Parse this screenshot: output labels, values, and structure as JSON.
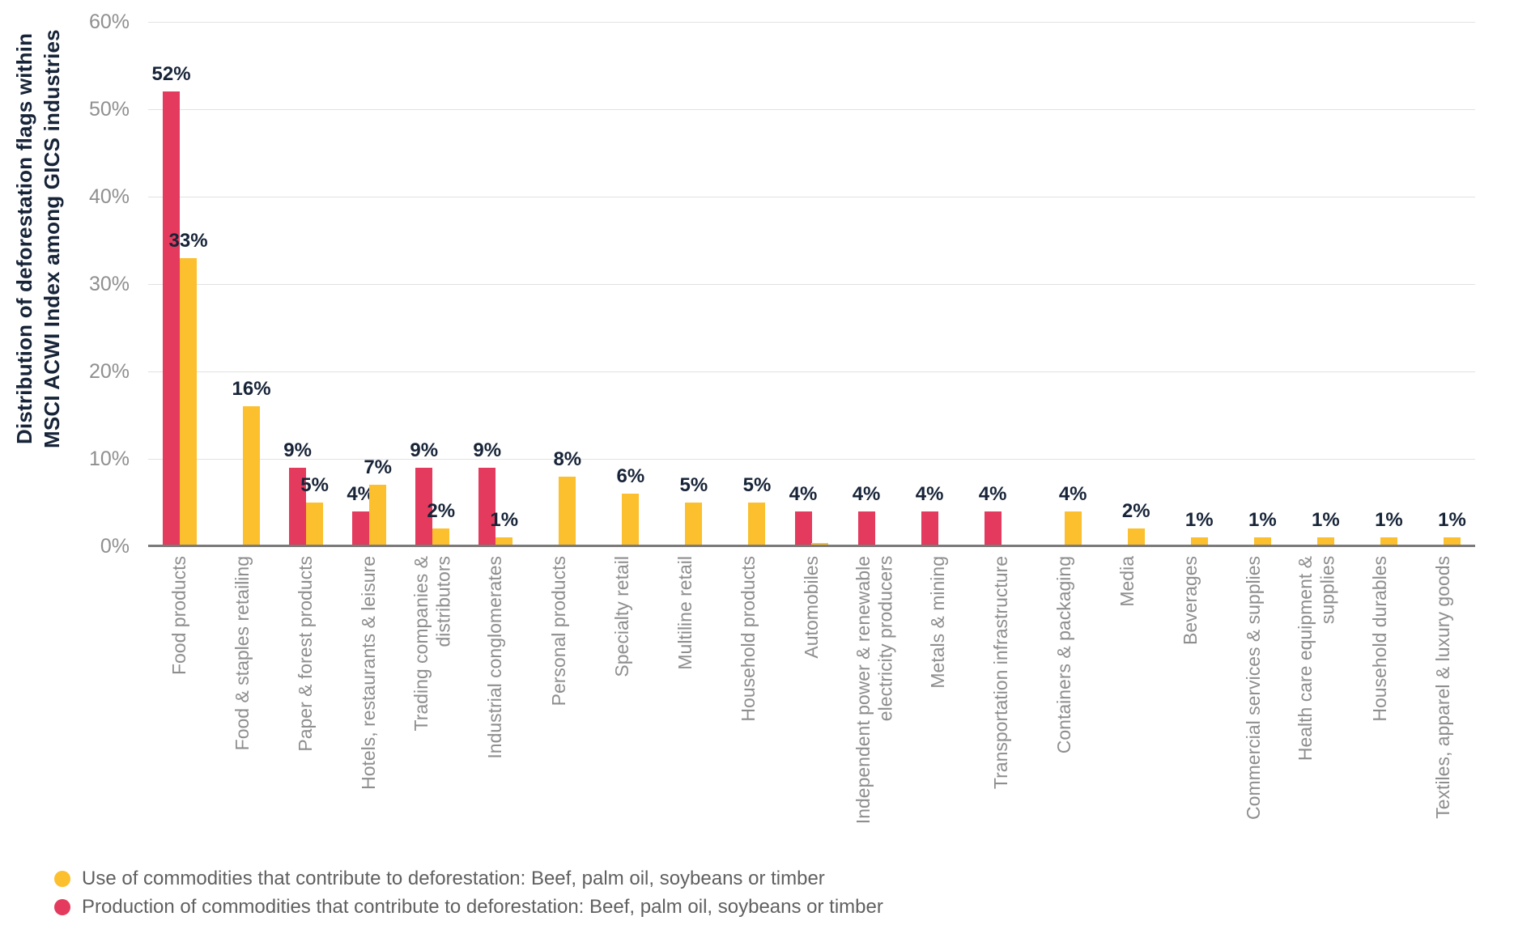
{
  "chart_data": {
    "type": "bar",
    "title": "",
    "y_axis": {
      "label": "Distribution of deforestation flags within\nMSCI ACWI Index among GICS industries",
      "ticks": [
        "0%",
        "10%",
        "20%",
        "30%",
        "40%",
        "50%",
        "60%"
      ],
      "min": 0,
      "max": 60,
      "step": 10,
      "grid": true
    },
    "categories": [
      "Food products",
      "Food & staples retailing",
      "Paper & forest products",
      "Hotels, restaurants & leisure",
      "Trading companies &\ndistributors",
      "Industrial conglomerates",
      "Personal products",
      "Specialty retail",
      "Multiline retail",
      "Household products",
      "Automobiles",
      "Independent power & renewable\nelectricity producers",
      "Metals & mining",
      "Transportation infrastructure",
      "Containers & packaging",
      "Media",
      "Beverages",
      "Commercial services & supplies",
      "Health care equipment &\nsupplies",
      "Household durables",
      "Textiles, apparel & luxury goods"
    ],
    "series": [
      {
        "name": "Production of commodities that contribute to deforestation: Beef, palm oil, soybeans or timber",
        "color": "#E43A5D",
        "position": "left",
        "values": [
          52,
          null,
          9,
          4,
          9,
          9,
          null,
          null,
          null,
          null,
          4,
          4,
          4,
          4,
          null,
          null,
          null,
          null,
          null,
          null,
          null
        ],
        "labels": [
          "52%",
          "",
          "9%",
          "4%",
          "9%",
          "9%",
          "",
          "",
          "",
          "",
          "4%",
          "4%",
          "4%",
          "4%",
          "",
          "",
          "",
          "",
          "",
          "",
          ""
        ]
      },
      {
        "name": "Use of commodities that contribute to deforestation: Beef, palm oil, soybeans or timber",
        "color": "#FCBF2D",
        "position": "right",
        "values": [
          33,
          16,
          5,
          7,
          2,
          1,
          8,
          6,
          5,
          5,
          0.4,
          null,
          null,
          null,
          4,
          2,
          1,
          1,
          1,
          1,
          1
        ],
        "labels": [
          "33%",
          "16%",
          "5%",
          "7%",
          "2%",
          "1%",
          "8%",
          "6%",
          "5%",
          "5%",
          "",
          "",
          "",
          "",
          "4%",
          "2%",
          "1%",
          "1%",
          "1%",
          "1%",
          "1%"
        ]
      }
    ],
    "legend": [
      {
        "name": "Use of commodities that contribute to deforestation: Beef, palm oil, soybeans or timber",
        "color": "#FCBF2D"
      },
      {
        "name": "Production of commodities that contribute to deforestation: Beef, palm oil, soybeans or timber",
        "color": "#E43A5D"
      }
    ],
    "colors": {
      "value_label": "#172438",
      "axis_text": "#8F8F8F",
      "gridline": "#E2E2E2",
      "baseline": "#7A7A7A"
    }
  }
}
